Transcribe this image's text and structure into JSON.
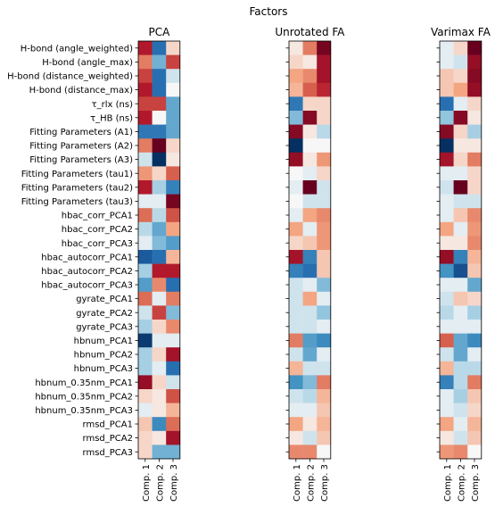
{
  "chart_data": {
    "type": "heatmap",
    "title": "Factors",
    "colormap": "RdBu_r",
    "value_range": [
      -1,
      1
    ],
    "rows": [
      "H-bond (angle_weighted)",
      "H-bond (angle_max)",
      "H-bond (distance_weighted)",
      "H-bond (distance_max)",
      "τ_rlx (ns)",
      "τ_HB (ns)",
      "Fitting Parameters (A1)",
      "Fitting Parameters (A2)",
      "Fitting Parameters (A3)",
      "Fitting Parameters (tau1)",
      "Fitting Parameters (tau2)",
      "Fitting Parameters (tau3)",
      "hbac_corr_PCA1",
      "hbac_corr_PCA2",
      "hbac_corr_PCA3",
      "hbac_autocorr_PCA1",
      "hbac_autocorr_PCA2",
      "hbac_autocorr_PCA3",
      "gyrate_PCA1",
      "gyrate_PCA2",
      "gyrate_PCA3",
      "hbnum_PCA1",
      "hbnum_PCA2",
      "hbnum_PCA3",
      "hbnum_0.35nm_PCA1",
      "hbnum_0.35nm_PCA2",
      "hbnum_0.35nm_PCA3",
      "rmsd_PCA1",
      "rmsd_PCA2",
      "rmsd_PCA3"
    ],
    "columns": [
      "Comp. 1",
      "Comp. 2",
      "Comp. 3"
    ],
    "panels": [
      {
        "title": "PCA",
        "values": [
          [
            0.75,
            -0.7,
            0.1
          ],
          [
            0.4,
            -0.35,
            0.6
          ],
          [
            0.6,
            -0.7,
            -0.1
          ],
          [
            0.75,
            -0.7,
            0.0
          ],
          [
            0.6,
            0.6,
            -0.4
          ],
          [
            0.75,
            0.0,
            -0.4
          ],
          [
            -0.65,
            -0.65,
            -0.4
          ],
          [
            0.4,
            1.0,
            0.1
          ],
          [
            -0.1,
            -1.0,
            0.05
          ],
          [
            0.3,
            0.1,
            0.5
          ],
          [
            0.75,
            -0.2,
            -0.6
          ],
          [
            -0.05,
            -0.05,
            0.95
          ],
          [
            0.45,
            -0.15,
            0.55
          ],
          [
            -0.15,
            -0.4,
            0.25
          ],
          [
            -0.05,
            -0.3,
            -0.45
          ],
          [
            -0.8,
            -0.7,
            0.2
          ],
          [
            -0.2,
            0.75,
            0.75
          ],
          [
            -0.45,
            0.35,
            -0.7
          ],
          [
            0.45,
            -0.05,
            0.4
          ],
          [
            -0.1,
            0.6,
            -0.3
          ],
          [
            -0.2,
            0.1,
            0.35
          ],
          [
            -0.95,
            -0.05,
            -0.05
          ],
          [
            -0.2,
            0.1,
            0.8
          ],
          [
            -0.2,
            -0.05,
            -0.7
          ],
          [
            0.85,
            0.1,
            -0.1
          ],
          [
            0.1,
            0.05,
            0.55
          ],
          [
            -0.05,
            0.05,
            0.2
          ],
          [
            0.15,
            -0.55,
            0.45
          ],
          [
            0.1,
            0.05,
            0.8
          ],
          [
            0.1,
            -0.35,
            -0.35
          ]
        ]
      },
      {
        "title": "Unrotated FA",
        "values": [
          [
            0.05,
            0.4,
            0.95
          ],
          [
            0.1,
            0.05,
            0.8
          ],
          [
            0.25,
            0.35,
            0.8
          ],
          [
            0.2,
            0.5,
            0.7
          ],
          [
            -0.65,
            0.1,
            0.1
          ],
          [
            -0.3,
            0.9,
            0.1
          ],
          [
            0.9,
            0.05,
            -0.15
          ],
          [
            -1.0,
            0.0,
            0.0
          ],
          [
            0.85,
            0.05,
            0.3
          ],
          [
            0.0,
            -0.05,
            0.1
          ],
          [
            -0.05,
            1.0,
            -0.1
          ],
          [
            0.0,
            -0.1,
            -0.1
          ],
          [
            -0.05,
            0.25,
            0.35
          ],
          [
            0.25,
            -0.05,
            0.3
          ],
          [
            0.1,
            0.15,
            0.3
          ],
          [
            0.8,
            -0.6,
            0.15
          ],
          [
            -0.6,
            -0.7,
            0.15
          ],
          [
            -0.1,
            -0.05,
            -0.3
          ],
          [
            -0.1,
            0.25,
            -0.05
          ],
          [
            -0.1,
            -0.1,
            -0.25
          ],
          [
            -0.1,
            -0.1,
            -0.05
          ],
          [
            0.4,
            -0.45,
            -0.55
          ],
          [
            -0.1,
            -0.4,
            -0.05
          ],
          [
            0.2,
            -0.1,
            -0.1
          ],
          [
            -0.5,
            -0.3,
            0.4
          ],
          [
            -0.1,
            -0.15,
            0.2
          ],
          [
            -0.05,
            -0.05,
            0.15
          ],
          [
            0.25,
            0.05,
            0.2
          ],
          [
            0.05,
            -0.1,
            0.15
          ],
          [
            0.35,
            0.35,
            0.0
          ]
        ]
      },
      {
        "title": "Varimax FA",
        "values": [
          [
            -0.05,
            0.1,
            1.0
          ],
          [
            -0.05,
            -0.1,
            0.85
          ],
          [
            0.15,
            0.1,
            0.9
          ],
          [
            0.15,
            0.25,
            0.85
          ],
          [
            -0.7,
            -0.05,
            0.1
          ],
          [
            -0.25,
            0.9,
            0.05
          ],
          [
            0.9,
            0.1,
            -0.2
          ],
          [
            -1.0,
            0.05,
            0.05
          ],
          [
            0.8,
            0.1,
            0.4
          ],
          [
            -0.05,
            -0.05,
            0.1
          ],
          [
            -0.1,
            1.0,
            0.1
          ],
          [
            -0.05,
            -0.1,
            -0.1
          ],
          [
            -0.05,
            0.15,
            0.35
          ],
          [
            0.25,
            -0.05,
            0.3
          ],
          [
            0.05,
            0.05,
            0.35
          ],
          [
            0.85,
            -0.6,
            0.2
          ],
          [
            -0.5,
            -0.85,
            0.15
          ],
          [
            -0.05,
            -0.05,
            -0.4
          ],
          [
            -0.1,
            0.15,
            0.1
          ],
          [
            -0.15,
            -0.05,
            -0.2
          ],
          [
            -0.05,
            -0.05,
            -0.05
          ],
          [
            0.5,
            -0.4,
            -0.55
          ],
          [
            -0.1,
            -0.4,
            -0.05
          ],
          [
            0.2,
            -0.15,
            -0.15
          ],
          [
            -0.6,
            -0.15,
            0.4
          ],
          [
            -0.05,
            -0.2,
            0.15
          ],
          [
            -0.05,
            -0.1,
            0.1
          ],
          [
            0.25,
            -0.05,
            0.2
          ],
          [
            0.05,
            -0.1,
            0.15
          ],
          [
            0.3,
            0.35,
            0.0
          ]
        ]
      }
    ]
  }
}
